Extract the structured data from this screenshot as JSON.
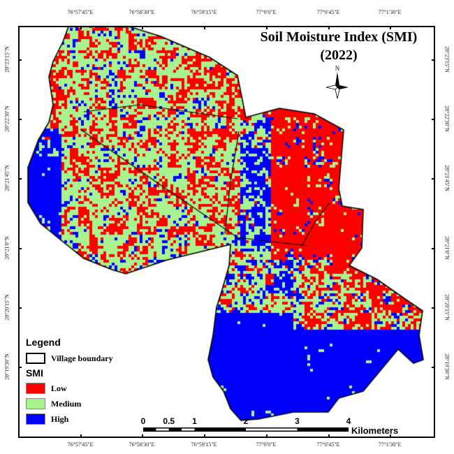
{
  "title": {
    "line1": "Soil Moisture Index (SMI)",
    "line2": "(2022)"
  },
  "north_arrow": {
    "label": "N"
  },
  "longitude_ticks": [
    "76°57'45\"E",
    "76°58'30\"E",
    "76°59'15\"E",
    "77°0'0\"E",
    "77°0'45\"E",
    "77°1'30\"E"
  ],
  "latitude_ticks": [
    "28°23'15\"N",
    "28°22'30\"N",
    "28°21'45\"N",
    "28°21'0\"N",
    "28°20'15\"N",
    "28°19'30\"N"
  ],
  "legend": {
    "title": "Legend",
    "boundary_label": "Village boundary",
    "class_title": "SMI",
    "classes": [
      {
        "label": "Low",
        "color": "#ff0000"
      },
      {
        "label": "Medium",
        "color": "#a9f290"
      },
      {
        "label": "High",
        "color": "#0000ff"
      }
    ]
  },
  "scale_bar": {
    "labels": [
      "0",
      "0.5",
      "1",
      "2",
      "3",
      "4"
    ],
    "unit": "Kilometers"
  }
}
